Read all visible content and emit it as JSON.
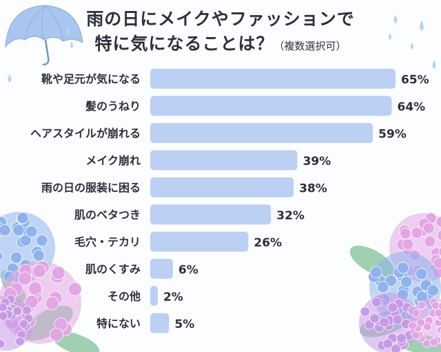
{
  "title": {
    "line1": "雨の日にメイクやファッションで",
    "line2": "特に気になることは？",
    "note": "（複数選択可）"
  },
  "colors": {
    "bar": "#bcd0f4",
    "text": "#2f2f3a",
    "background": "#fbfdff",
    "umbrella": "#a9c6ee",
    "raindrop": "#b8d4f0",
    "hydrangea_blue": "#8fb2ec",
    "hydrangea_pink": "#e2a6e4",
    "hydrangea_purple": "#c69ae6",
    "leaf": "#8fc7a4"
  },
  "chart_data": {
    "type": "bar",
    "orientation": "horizontal",
    "categories": [
      "靴や足元が気になる",
      "髪のうねり",
      "ヘアスタイルが崩れる",
      "メイク崩れ",
      "雨の日の服装に困る",
      "肌のベタつき",
      "毛穴・テカリ",
      "肌のくすみ",
      "その他",
      "特にない"
    ],
    "values": [
      65,
      64,
      59,
      39,
      38,
      32,
      26,
      6,
      2,
      5
    ],
    "value_labels": [
      "65%",
      "64%",
      "59%",
      "39%",
      "38%",
      "32%",
      "26%",
      "6%",
      "2%",
      "5%"
    ],
    "unit": "%",
    "xlim": [
      0,
      100
    ],
    "grid": false,
    "legend": "none"
  },
  "decorations": {
    "umbrella": "umbrella-icon",
    "raindrops": "raindrop-icon",
    "flowers": "hydrangea-icon"
  }
}
